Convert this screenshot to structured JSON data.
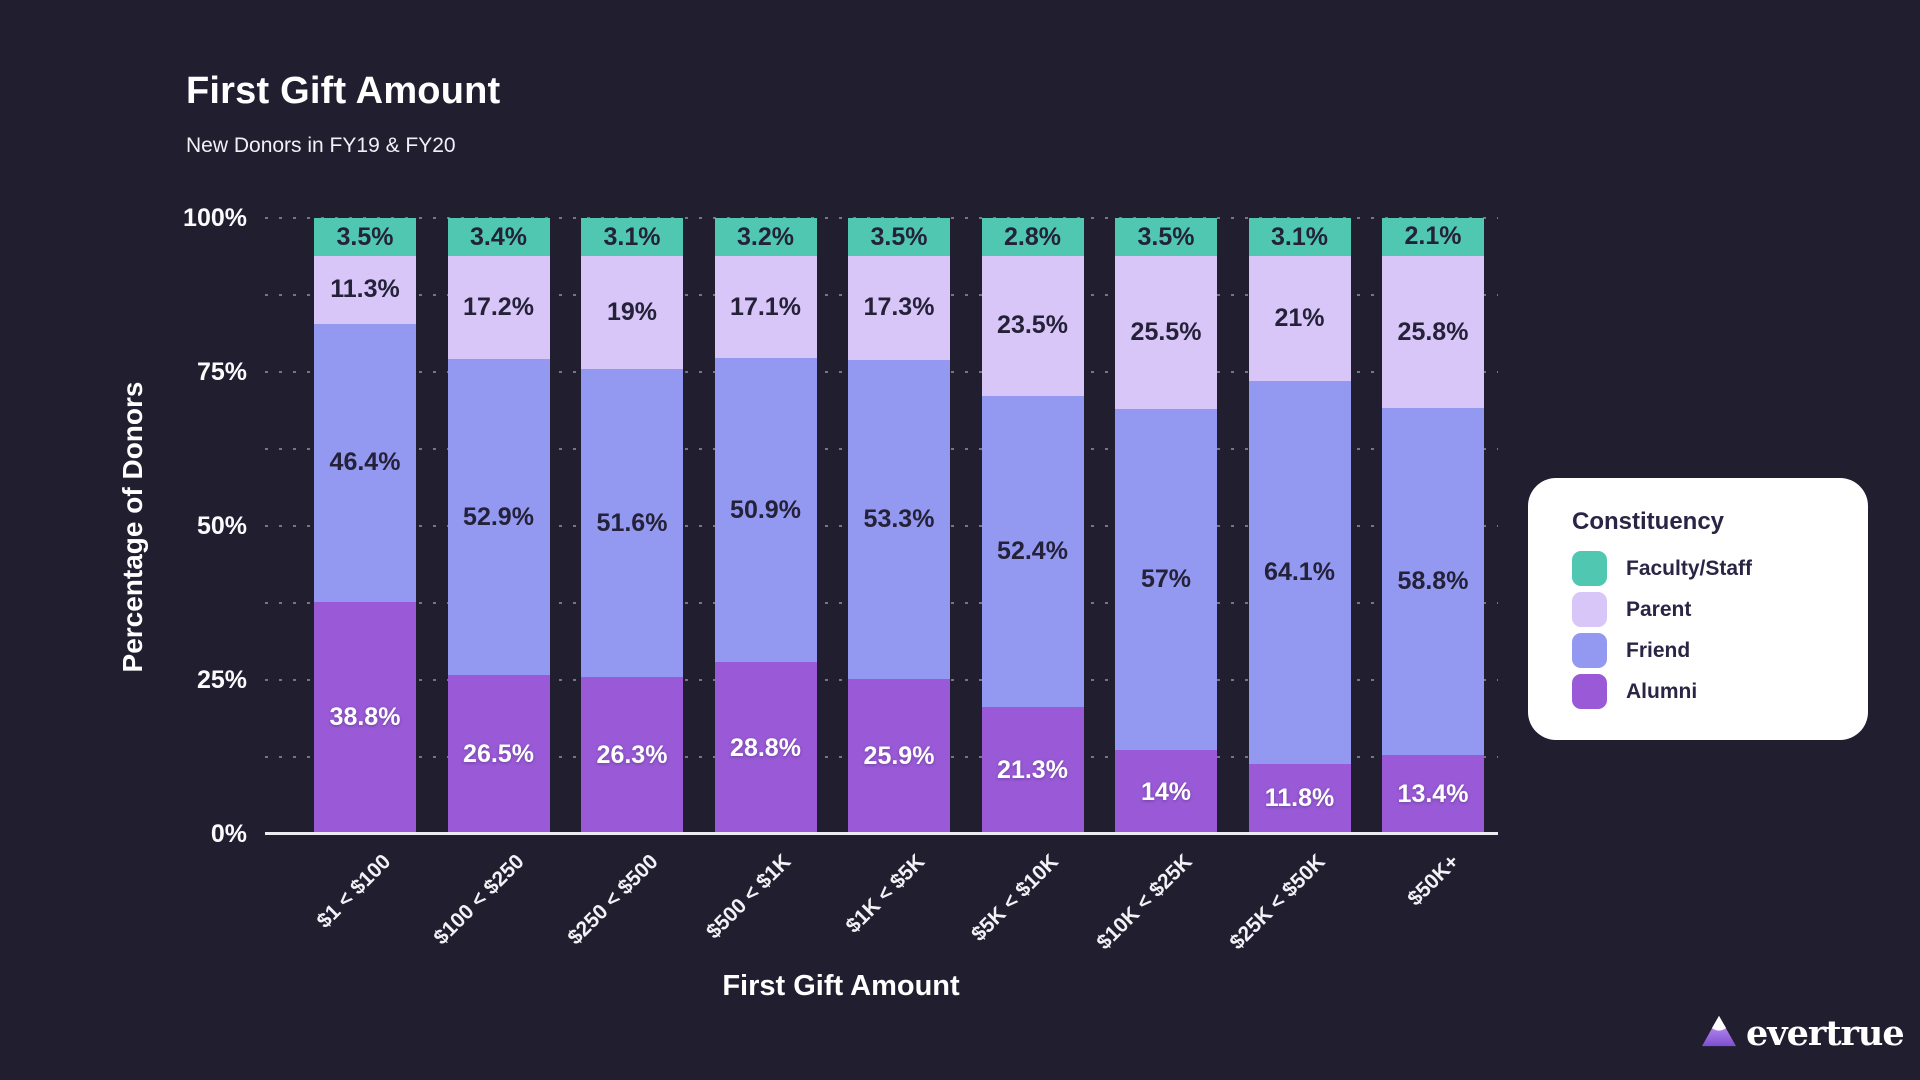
{
  "title": "First Gift Amount",
  "subtitle": "New Donors in FY19 & FY20",
  "y_axis": {
    "title": "Percentage of Donors",
    "ticks": [
      {
        "value": 0,
        "label": "0%"
      },
      {
        "value": 25,
        "label": "25%"
      },
      {
        "value": 50,
        "label": "50%"
      },
      {
        "value": 75,
        "label": "75%"
      },
      {
        "value": 100,
        "label": "100%"
      }
    ]
  },
  "x_axis": {
    "title": "First Gift Amount"
  },
  "legend": {
    "title": "Constituency",
    "position": "right",
    "items": [
      {
        "label": "Faculty/Staff",
        "color": "#4fc7b1"
      },
      {
        "label": "Parent",
        "color": "#d7c6f7"
      },
      {
        "label": "Friend",
        "color": "#9399f0"
      },
      {
        "label": "Alumni",
        "color": "#9a5ad7"
      }
    ]
  },
  "logo": {
    "text": "evertrue"
  },
  "colors": {
    "background": "#211e30",
    "axis_line": "#eceaf2",
    "label_dark": "#242138",
    "label_light": "#ffffff"
  },
  "chart_data": {
    "type": "bar",
    "stacked": true,
    "percent_total": 100,
    "title": "First Gift Amount",
    "subtitle": "New Donors in FY19 & FY20",
    "xlabel": "First Gift Amount",
    "ylabel": "Percentage of Donors",
    "ylim": [
      0,
      100
    ],
    "gridlines_every": 12.5,
    "grid": "dotted",
    "legend_position": "right",
    "categories": [
      "$1 < $100",
      "$100 < $250",
      "$250 < $500",
      "$500 < $1K",
      "$1K < $5K",
      "$5K < $10K",
      "$10K < $25K",
      "$25K < $50K",
      "$50K+"
    ],
    "series": [
      {
        "name": "Alumni",
        "color": "#9a5ad7",
        "label_color": "#ffffff",
        "label_on_dark": true,
        "values": [
          38.8,
          26.5,
          26.3,
          28.8,
          25.9,
          21.3,
          14,
          11.8,
          13.4
        ]
      },
      {
        "name": "Friend",
        "color": "#9399f0",
        "label_color": "#242138",
        "label_on_dark": false,
        "values": [
          46.4,
          52.9,
          51.6,
          50.9,
          53.3,
          52.4,
          57,
          64.1,
          58.8
        ]
      },
      {
        "name": "Parent",
        "color": "#d7c6f7",
        "label_color": "#242138",
        "label_on_dark": false,
        "values": [
          11.3,
          17.2,
          19,
          17.1,
          17.3,
          23.5,
          25.5,
          21,
          25.8
        ]
      },
      {
        "name": "Faculty/Staff",
        "color": "#4fc7b1",
        "label_color": "#242138",
        "label_on_dark": false,
        "values": [
          3.5,
          3.4,
          3.1,
          3.2,
          3.5,
          2.8,
          3.5,
          3.1,
          2.1
        ]
      }
    ]
  }
}
